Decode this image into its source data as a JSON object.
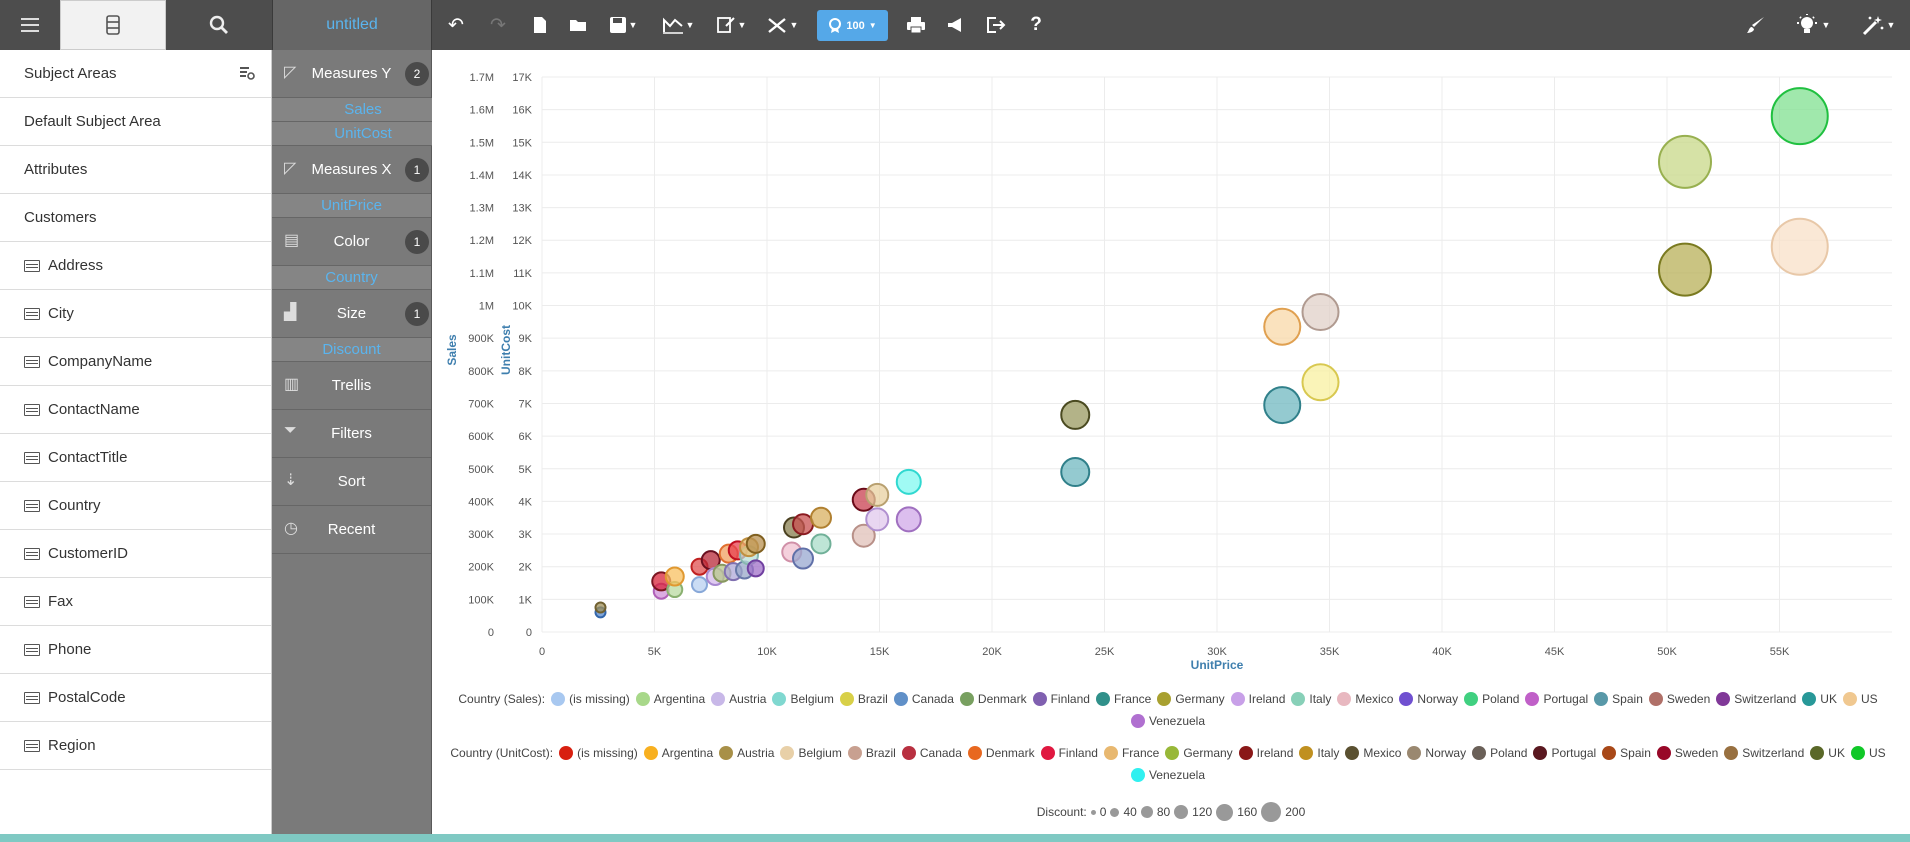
{
  "toolbar": {
    "title": "untitled",
    "zoom": "100",
    "icons": [
      "undo-icon",
      "redo-icon",
      "new-file-icon",
      "open-folder-icon",
      "save-icon",
      "chart-type-icon",
      "chart-options-icon",
      "tools-icon",
      "print-icon",
      "announce-icon",
      "export-icon",
      "help-icon",
      "brush-icon",
      "lightbulb-icon",
      "magic-wand-icon"
    ]
  },
  "leftpanel": {
    "header": "Subject Areas",
    "items": [
      {
        "label": "Default Subject Area",
        "attr": false
      },
      {
        "label": "Attributes",
        "attr": false
      },
      {
        "label": "Customers",
        "attr": false
      },
      {
        "label": "Address",
        "attr": true
      },
      {
        "label": "City",
        "attr": true
      },
      {
        "label": "CompanyName",
        "attr": true
      },
      {
        "label": "ContactName",
        "attr": true
      },
      {
        "label": "ContactTitle",
        "attr": true
      },
      {
        "label": "Country",
        "attr": true
      },
      {
        "label": "CustomerID",
        "attr": true
      },
      {
        "label": "Fax",
        "attr": true
      },
      {
        "label": "Phone",
        "attr": true
      },
      {
        "label": "PostalCode",
        "attr": true
      },
      {
        "label": "Region",
        "attr": true
      }
    ]
  },
  "shelf": {
    "measures_y": {
      "label": "Measures Y",
      "count": "2",
      "pills": [
        "Sales",
        "UnitCost"
      ]
    },
    "measures_x": {
      "label": "Measures X",
      "count": "1",
      "pills": [
        "UnitPrice"
      ]
    },
    "color": {
      "label": "Color",
      "count": "1",
      "pills": [
        "Country"
      ]
    },
    "size": {
      "label": "Size",
      "count": "1",
      "pills": [
        "Discount"
      ]
    },
    "trellis": {
      "label": "Trellis"
    },
    "filters": {
      "label": "Filters"
    },
    "sort": {
      "label": "Sort"
    },
    "recent": {
      "label": "Recent"
    }
  },
  "chart_data": {
    "type": "scatter",
    "xlabel": "UnitPrice",
    "ylabel_left": "Sales",
    "ylabel_right": "UnitCost",
    "xlim": [
      0,
      60000
    ],
    "ylim_sales": [
      0,
      1700000
    ],
    "ylim_unitcost": [
      0,
      17000
    ],
    "x_ticks": [
      "0",
      "5K",
      "10K",
      "15K",
      "20K",
      "25K",
      "30K",
      "35K",
      "40K",
      "45K",
      "50K",
      "55K"
    ],
    "y_ticks_sales": [
      "0",
      "100K",
      "200K",
      "300K",
      "400K",
      "500K",
      "600K",
      "700K",
      "800K",
      "900K",
      "1M",
      "1.1M",
      "1.2M",
      "1.3M",
      "1.4M",
      "1.5M",
      "1.6M",
      "1.7M"
    ],
    "y_ticks_unitcost": [
      "0",
      "1K",
      "2K",
      "3K",
      "4K",
      "5K",
      "6K",
      "7K",
      "8K",
      "9K",
      "10K",
      "11K",
      "12K",
      "13K",
      "14K",
      "15K",
      "16K",
      "17K"
    ],
    "grid": true,
    "points": [
      {
        "x": 2600,
        "y": 60000,
        "d": 10,
        "c": "#5588cc",
        "b": "#3366aa"
      },
      {
        "x": 2600,
        "y": 75000,
        "d": 10,
        "c": "#a0905a",
        "b": "#706030"
      },
      {
        "x": 5300,
        "y": 125000,
        "d": 15,
        "c": "#d090d8",
        "b": "#b060b8"
      },
      {
        "x": 5300,
        "y": 155000,
        "d": 18,
        "c": "#d8243a",
        "b": "#7a1520"
      },
      {
        "x": 5900,
        "y": 130000,
        "d": 15,
        "c": "#b9d9a0",
        "b": "#8ab070"
      },
      {
        "x": 5900,
        "y": 170000,
        "d": 18,
        "c": "#f8c060",
        "b": "#e09830"
      },
      {
        "x": 7000,
        "y": 145000,
        "d": 15,
        "c": "#b8d0f0",
        "b": "#88a8d8"
      },
      {
        "x": 7000,
        "y": 200000,
        "d": 16,
        "c": "#e05050",
        "b": "#c02020"
      },
      {
        "x": 7500,
        "y": 220000,
        "d": 18,
        "c": "#b82838",
        "b": "#6a1020"
      },
      {
        "x": 7700,
        "y": 170000,
        "d": 17,
        "c": "#d4b8ec",
        "b": "#a888d0"
      },
      {
        "x": 8000,
        "y": 180000,
        "d": 17,
        "c": "#b8c888",
        "b": "#889860"
      },
      {
        "x": 8300,
        "y": 240000,
        "d": 18,
        "c": "#f0a060",
        "b": "#e07030"
      },
      {
        "x": 8500,
        "y": 185000,
        "d": 17,
        "c": "#b0a8d8",
        "b": "#8070b0"
      },
      {
        "x": 8700,
        "y": 250000,
        "d": 18,
        "c": "#e84050",
        "b": "#c01020"
      },
      {
        "x": 9000,
        "y": 190000,
        "d": 17,
        "c": "#98a8c8",
        "b": "#6878a8"
      },
      {
        "x": 9200,
        "y": 235000,
        "d": 18,
        "c": "#b8e0d8",
        "b": "#88b8b0"
      },
      {
        "x": 9200,
        "y": 260000,
        "d": 18,
        "c": "#e8c070",
        "b": "#c09040"
      },
      {
        "x": 9500,
        "y": 195000,
        "d": 16,
        "c": "#a070c8",
        "b": "#7040a0"
      },
      {
        "x": 9500,
        "y": 270000,
        "d": 18,
        "c": "#b89050",
        "b": "#806020"
      },
      {
        "x": 11100,
        "y": 245000,
        "d": 19,
        "c": "#f0c0d0",
        "b": "#d090a8"
      },
      {
        "x": 11200,
        "y": 320000,
        "d": 20,
        "c": "#8a8050",
        "b": "#4a4020"
      },
      {
        "x": 11600,
        "y": 225000,
        "d": 20,
        "c": "#98a8d0",
        "b": "#6070a8"
      },
      {
        "x": 11600,
        "y": 330000,
        "d": 20,
        "c": "#c85050",
        "b": "#8a1a20"
      },
      {
        "x": 12400,
        "y": 270000,
        "d": 19,
        "c": "#a8dcc8",
        "b": "#70b098"
      },
      {
        "x": 12400,
        "y": 350000,
        "d": 20,
        "c": "#d8b060",
        "b": "#b08030"
      },
      {
        "x": 14300,
        "y": 295000,
        "d": 22,
        "c": "#e0c0b8",
        "b": "#b89088"
      },
      {
        "x": 14300,
        "y": 405000,
        "d": 22,
        "c": "#c84050",
        "b": "#6a0a18"
      },
      {
        "x": 14900,
        "y": 345000,
        "d": 22,
        "c": "#e0c8ec",
        "b": "#b090d0"
      },
      {
        "x": 14900,
        "y": 420000,
        "d": 22,
        "c": "#e8d0a0",
        "b": "#b8a070"
      },
      {
        "x": 16300,
        "y": 345000,
        "d": 24,
        "c": "#d0a8e8",
        "b": "#a070c0"
      },
      {
        "x": 16300,
        "y": 460000,
        "d": 24,
        "c": "#80f8f0",
        "b": "#30d8d0"
      },
      {
        "x": 23700,
        "y": 490000,
        "d": 28,
        "c": "#70b8c0",
        "b": "#30808a"
      },
      {
        "x": 23700,
        "y": 665000,
        "d": 28,
        "c": "#9a9a60",
        "b": "#4a4a20"
      },
      {
        "x": 32900,
        "y": 695000,
        "d": 36,
        "c": "#70b8c0",
        "b": "#30808a"
      },
      {
        "x": 32900,
        "y": 935000,
        "d": 36,
        "c": "#f8d8a8",
        "b": "#e0a050"
      },
      {
        "x": 34600,
        "y": 765000,
        "d": 36,
        "c": "#f8f0a0",
        "b": "#d8c850"
      },
      {
        "x": 34600,
        "y": 980000,
        "d": 36,
        "c": "#e0d0c8",
        "b": "#b09a90"
      },
      {
        "x": 50800,
        "y": 1110000,
        "d": 52,
        "c": "#b8b058",
        "b": "#7a7a20"
      },
      {
        "x": 50800,
        "y": 1440000,
        "d": 52,
        "c": "#c8d888",
        "b": "#98b050"
      },
      {
        "x": 55900,
        "y": 1180000,
        "d": 56,
        "c": "#f8e0c8",
        "b": "#e8c8a8"
      },
      {
        "x": 55900,
        "y": 1580000,
        "d": 56,
        "c": "#80e090",
        "b": "#20c040"
      }
    ]
  },
  "legend_sales": {
    "title": "Country (Sales):",
    "items": [
      {
        "label": "(is missing)",
        "color": "#a8c8f0"
      },
      {
        "label": "Argentina",
        "color": "#a8d88a"
      },
      {
        "label": "Austria",
        "color": "#c8b8e8"
      },
      {
        "label": "Belgium",
        "color": "#80d8d0"
      },
      {
        "label": "Brazil",
        "color": "#d8d048"
      },
      {
        "label": "Canada",
        "color": "#6090c8"
      },
      {
        "label": "Denmark",
        "color": "#78a060"
      },
      {
        "label": "Finland",
        "color": "#8060b0"
      },
      {
        "label": "France",
        "color": "#30908a"
      },
      {
        "label": "Germany",
        "color": "#a8a030"
      },
      {
        "label": "Ireland",
        "color": "#c8a0e8"
      },
      {
        "label": "Italy",
        "color": "#88d0b8"
      },
      {
        "label": "Mexico",
        "color": "#e8b8c0"
      },
      {
        "label": "Norway",
        "color": "#7050d0"
      },
      {
        "label": "Poland",
        "color": "#40d080"
      },
      {
        "label": "Portugal",
        "color": "#c060c8"
      },
      {
        "label": "Spain",
        "color": "#5898a8"
      },
      {
        "label": "Sweden",
        "color": "#b07068"
      },
      {
        "label": "Switzerland",
        "color": "#803898"
      },
      {
        "label": "UK",
        "color": "#289898"
      },
      {
        "label": "US",
        "color": "#f0c890"
      },
      {
        "label": "Venezuela",
        "color": "#b070d0"
      }
    ]
  },
  "legend_unitcost": {
    "title": "Country (UnitCost):",
    "items": [
      {
        "label": "(is missing)",
        "color": "#d82010"
      },
      {
        "label": "Argentina",
        "color": "#f8b020"
      },
      {
        "label": "Austria",
        "color": "#a89048"
      },
      {
        "label": "Belgium",
        "color": "#e8d0a8"
      },
      {
        "label": "Brazil",
        "color": "#c8a090"
      },
      {
        "label": "Canada",
        "color": "#b83040"
      },
      {
        "label": "Denmark",
        "color": "#e86820"
      },
      {
        "label": "Finland",
        "color": "#e01840"
      },
      {
        "label": "France",
        "color": "#e8b870"
      },
      {
        "label": "Germany",
        "color": "#98b838"
      },
      {
        "label": "Ireland",
        "color": "#8a1818"
      },
      {
        "label": "Italy",
        "color": "#c09020"
      },
      {
        "label": "Mexico",
        "color": "#5a5030"
      },
      {
        "label": "Norway",
        "color": "#9a8870"
      },
      {
        "label": "Poland",
        "color": "#6a6058"
      },
      {
        "label": "Portugal",
        "color": "#5a1820"
      },
      {
        "label": "Spain",
        "color": "#a84818"
      },
      {
        "label": "Sweden",
        "color": "#980828"
      },
      {
        "label": "Switzerland",
        "color": "#987040"
      },
      {
        "label": "UK",
        "color": "#5a6828"
      },
      {
        "label": "US",
        "color": "#10c828"
      },
      {
        "label": "Venezuela",
        "color": "#30f0f0"
      }
    ]
  },
  "legend_size": {
    "title": "Discount:",
    "items": [
      "0",
      "40",
      "80",
      "120",
      "160",
      "200"
    ]
  }
}
